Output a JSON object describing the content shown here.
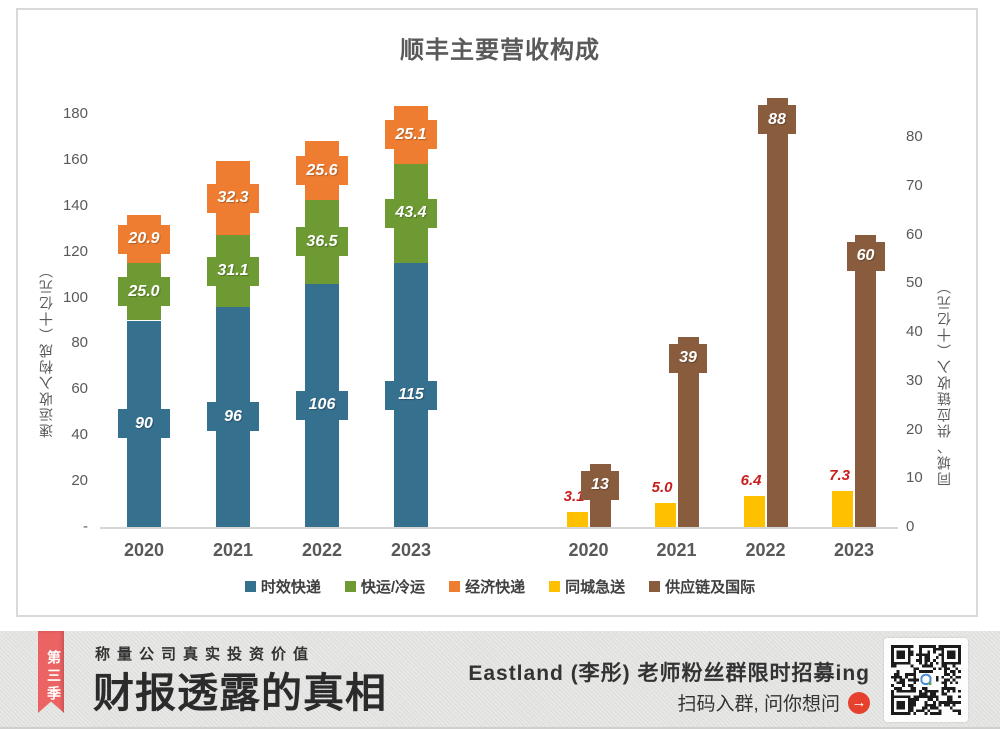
{
  "chart_data": {
    "type": "bar",
    "title": "顺丰主要营收构成",
    "left_axis": {
      "label": "速运收入构成（十亿元）",
      "ticks": [
        "180",
        "160",
        "140",
        "120",
        "100",
        "80",
        "60",
        "40",
        "20",
        "-"
      ],
      "range": [
        0,
        180
      ],
      "grid": false
    },
    "right_axis": {
      "label": "同城、供应链收入（十亿元）",
      "ticks": [
        "80",
        "70",
        "60",
        "50",
        "40",
        "30",
        "20",
        "10",
        "0"
      ],
      "range": [
        0,
        80
      ],
      "grid": false
    },
    "left_group": {
      "axis": "left",
      "stacked": true,
      "categories": [
        "2020",
        "2021",
        "2022",
        "2023"
      ],
      "series": [
        {
          "name": "时效快递",
          "color": "#36708F",
          "values": [
            90,
            96,
            106,
            115
          ],
          "labels": [
            "90",
            "96",
            "106",
            "115"
          ]
        },
        {
          "name": "快运/冷运",
          "color": "#6D9A33",
          "values": [
            25.0,
            31.1,
            36.5,
            43.4
          ],
          "labels": [
            "25.0",
            "31.1",
            "36.5",
            "43.4"
          ]
        },
        {
          "name": "经济快递",
          "color": "#EE7D31",
          "values": [
            20.9,
            32.3,
            25.6,
            25.1
          ],
          "labels": [
            "20.9",
            "32.3",
            "25.6",
            "25.1"
          ]
        }
      ]
    },
    "right_group": {
      "axis": "right",
      "stacked": false,
      "categories": [
        "2020",
        "2021",
        "2022",
        "2023"
      ],
      "series": [
        {
          "name": "同城急送",
          "color": "#FFC000",
          "values": [
            3.1,
            5.0,
            6.4,
            7.3
          ],
          "labels": [
            "3.1",
            "5.0",
            "6.4",
            "7.3"
          ],
          "label_color": "#C81E1E",
          "label_outside": true
        },
        {
          "name": "供应链及国际",
          "color": "#8A5C3E",
          "values": [
            13,
            39,
            88,
            60
          ],
          "labels": [
            "13",
            "39",
            "88",
            "60"
          ]
        }
      ]
    },
    "legend": [
      {
        "label": "时效快递",
        "color": "#36708F"
      },
      {
        "label": "快运/冷运",
        "color": "#6D9A33"
      },
      {
        "label": "经济快递",
        "color": "#EE7D31"
      },
      {
        "label": "同城急送",
        "color": "#FFC000"
      },
      {
        "label": "供应链及国际",
        "color": "#8A5C3E"
      }
    ],
    "legend_position": "bottom"
  },
  "banner": {
    "ribbon_text": "第三季",
    "ribbon_color": "#EB6363",
    "tagline": "称量公司真实投资价值",
    "title": "财报透露的真相",
    "promo_line1": "Eastland (李彤) 老师粉丝群限时招募ing",
    "promo_line2": "扫码入群, 问你想问",
    "arrow_glyph": "→",
    "arrow_color": "#E6412F"
  }
}
